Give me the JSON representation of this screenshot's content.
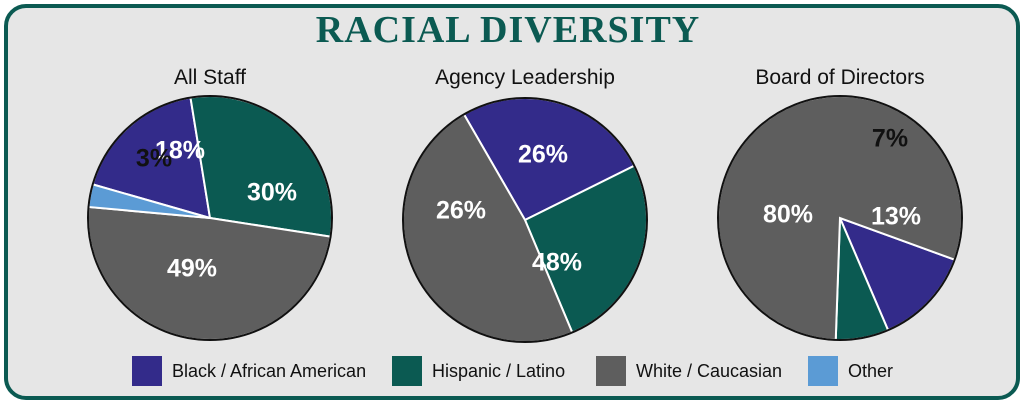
{
  "title": "RACIAL DIVERSITY",
  "legend": [
    {
      "label": "Black / African American",
      "color": "#332b8a"
    },
    {
      "label": "Hispanic / Latino",
      "color": "#0b5a52"
    },
    {
      "label": "White / Caucasian",
      "color": "#5e5e5e"
    },
    {
      "label": "Other",
      "color": "#5b9bd5"
    }
  ],
  "chart_data": [
    {
      "type": "pie",
      "title": "All Staff",
      "categories": [
        "Black / African American",
        "Hispanic / Latino",
        "White / Caucasian",
        "Other"
      ],
      "values": [
        18,
        30,
        49,
        3
      ],
      "labels": [
        "18%",
        "30%",
        "49%",
        "3%"
      ],
      "colors": [
        "#332b8a",
        "#0b5a52",
        "#5e5e5e",
        "#5b9bd5"
      ]
    },
    {
      "type": "pie",
      "title": "Agency Leadership",
      "categories": [
        "Black / African American",
        "Hispanic / Latino",
        "White / Caucasian"
      ],
      "values": [
        26,
        26,
        48
      ],
      "labels": [
        "26%",
        "26%",
        "48%"
      ],
      "colors": [
        "#332b8a",
        "#0b5a52",
        "#5e5e5e"
      ]
    },
    {
      "type": "pie",
      "title": "Board of Directors",
      "categories": [
        "Black / African American",
        "Hispanic / Latino",
        "White / Caucasian"
      ],
      "values": [
        13,
        7,
        80
      ],
      "labels": [
        "13%",
        "7%",
        "80%"
      ],
      "colors": [
        "#332b8a",
        "#0b5a52",
        "#5e5e5e"
      ]
    }
  ]
}
